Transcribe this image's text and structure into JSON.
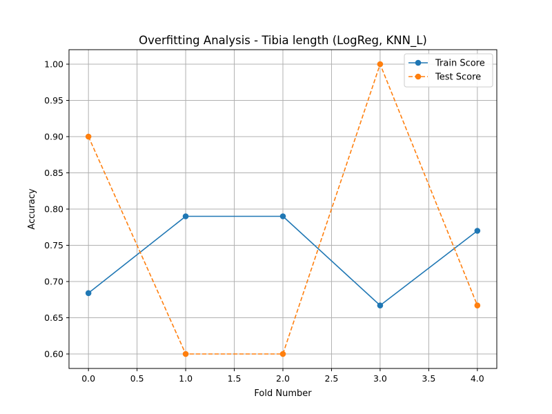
{
  "chart_data": {
    "type": "line",
    "title": "Overfitting Analysis - Tibia length (LogReg, KNN_L)",
    "xlabel": "Fold Number",
    "ylabel": "Accuracy",
    "x": [
      0,
      1,
      2,
      3,
      4
    ],
    "xlim": [
      -0.2,
      4.2
    ],
    "ylim": [
      0.58,
      1.02
    ],
    "xticks": [
      "0.0",
      "0.5",
      "1.0",
      "1.5",
      "2.0",
      "2.5",
      "3.0",
      "3.5",
      "4.0"
    ],
    "yticks": [
      "0.60",
      "0.65",
      "0.70",
      "0.75",
      "0.80",
      "0.85",
      "0.90",
      "0.95",
      "1.00"
    ],
    "grid": true,
    "legend_position": "top-right",
    "series": [
      {
        "name": "Train Score",
        "values": [
          0.684,
          0.79,
          0.79,
          0.667,
          0.77
        ],
        "color": "#1f77b4",
        "style": "solid",
        "marker": "circle"
      },
      {
        "name": "Test Score",
        "values": [
          0.9,
          0.6,
          0.6,
          1.0,
          0.667
        ],
        "color": "#ff7f0e",
        "style": "dashed",
        "marker": "circle"
      }
    ]
  }
}
